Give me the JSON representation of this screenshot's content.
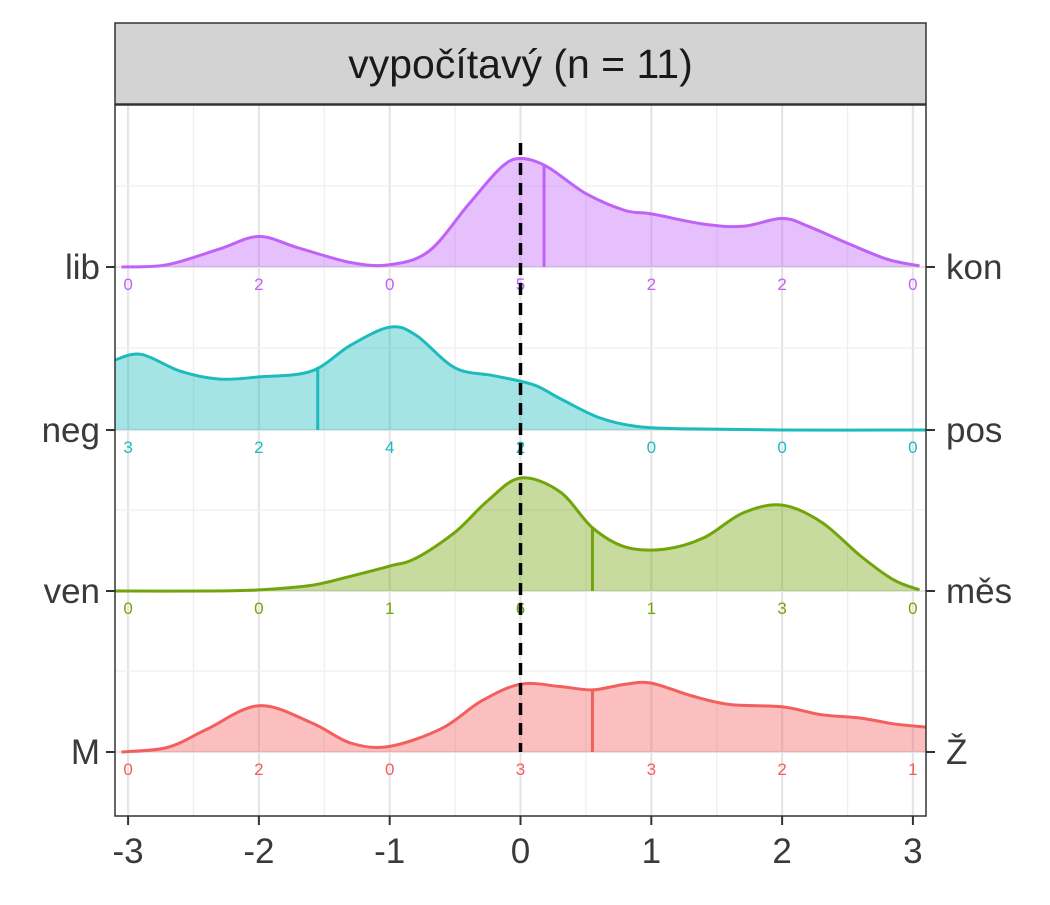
{
  "chart_data": {
    "type": "ridgeline-density",
    "title": "vypočítavý (n = 11)",
    "x_ticks": [
      -3,
      -2,
      -1,
      0,
      1,
      2,
      3
    ],
    "xlim": [
      -3.1,
      3.1
    ],
    "reference_line_x": 0,
    "colors": {
      "panel_border": "#333333",
      "strip_fill": "#d3d3d3",
      "grid_major": "#e5e5e5",
      "grid_minor": "#efefef",
      "reference_line": "#000000"
    },
    "series": [
      {
        "left_label": "lib",
        "right_label": "kon",
        "color": "#bf62f7",
        "counts": [
          0,
          2,
          0,
          5,
          2,
          2,
          0
        ],
        "mean": 0.18,
        "density": [
          [
            -3.05,
            0.0
          ],
          [
            -2.7,
            0.02
          ],
          [
            -2.3,
            0.16
          ],
          [
            -2.0,
            0.27
          ],
          [
            -1.7,
            0.17
          ],
          [
            -1.3,
            0.04
          ],
          [
            -1.0,
            0.02
          ],
          [
            -0.7,
            0.14
          ],
          [
            -0.4,
            0.55
          ],
          [
            -0.15,
            0.88
          ],
          [
            0.0,
            0.96
          ],
          [
            0.2,
            0.89
          ],
          [
            0.5,
            0.65
          ],
          [
            0.8,
            0.5
          ],
          [
            1.0,
            0.47
          ],
          [
            1.4,
            0.38
          ],
          [
            1.7,
            0.36
          ],
          [
            2.0,
            0.43
          ],
          [
            2.2,
            0.36
          ],
          [
            2.5,
            0.21
          ],
          [
            2.8,
            0.07
          ],
          [
            3.05,
            0.01
          ]
        ]
      },
      {
        "left_label": "neg",
        "right_label": "pos",
        "color": "#1dbbbd",
        "counts": [
          3,
          2,
          4,
          2,
          0,
          0,
          0
        ],
        "mean": -1.55,
        "density": [
          [
            -3.1,
            0.62
          ],
          [
            -2.9,
            0.67
          ],
          [
            -2.6,
            0.52
          ],
          [
            -2.3,
            0.45
          ],
          [
            -2.0,
            0.47
          ],
          [
            -1.6,
            0.52
          ],
          [
            -1.3,
            0.75
          ],
          [
            -1.0,
            0.91
          ],
          [
            -0.8,
            0.84
          ],
          [
            -0.5,
            0.55
          ],
          [
            -0.2,
            0.48
          ],
          [
            0.1,
            0.4
          ],
          [
            0.3,
            0.28
          ],
          [
            0.6,
            0.11
          ],
          [
            0.9,
            0.03
          ],
          [
            1.3,
            0.01
          ],
          [
            2.0,
            0.0
          ],
          [
            3.1,
            0.0
          ]
        ]
      },
      {
        "left_label": "ven",
        "right_label": "měs",
        "color": "#72a40c",
        "counts": [
          0,
          0,
          1,
          6,
          1,
          3,
          0
        ],
        "mean": 0.55,
        "density": [
          [
            -3.1,
            0.0
          ],
          [
            -2.4,
            0.0
          ],
          [
            -2.0,
            0.01
          ],
          [
            -1.6,
            0.05
          ],
          [
            -1.3,
            0.13
          ],
          [
            -1.0,
            0.22
          ],
          [
            -0.8,
            0.29
          ],
          [
            -0.5,
            0.52
          ],
          [
            -0.25,
            0.8
          ],
          [
            0.0,
            1.0
          ],
          [
            0.3,
            0.88
          ],
          [
            0.55,
            0.56
          ],
          [
            0.8,
            0.39
          ],
          [
            1.1,
            0.37
          ],
          [
            1.4,
            0.47
          ],
          [
            1.7,
            0.69
          ],
          [
            2.0,
            0.76
          ],
          [
            2.3,
            0.61
          ],
          [
            2.6,
            0.31
          ],
          [
            2.85,
            0.1
          ],
          [
            3.05,
            0.01
          ]
        ]
      },
      {
        "left_label": "M",
        "right_label": "Ž",
        "color": "#f25f5c",
        "counts": [
          0,
          2,
          0,
          3,
          3,
          2,
          1
        ],
        "mean": 0.55,
        "density": [
          [
            -3.05,
            0.0
          ],
          [
            -2.7,
            0.04
          ],
          [
            -2.4,
            0.2
          ],
          [
            -2.0,
            0.41
          ],
          [
            -1.6,
            0.26
          ],
          [
            -1.3,
            0.08
          ],
          [
            -1.0,
            0.05
          ],
          [
            -0.6,
            0.21
          ],
          [
            -0.3,
            0.45
          ],
          [
            0.0,
            0.6
          ],
          [
            0.3,
            0.58
          ],
          [
            0.55,
            0.55
          ],
          [
            0.8,
            0.6
          ],
          [
            1.0,
            0.61
          ],
          [
            1.3,
            0.5
          ],
          [
            1.6,
            0.42
          ],
          [
            2.0,
            0.4
          ],
          [
            2.3,
            0.33
          ],
          [
            2.6,
            0.3
          ],
          [
            2.85,
            0.25
          ],
          [
            3.1,
            0.22
          ]
        ]
      }
    ]
  }
}
